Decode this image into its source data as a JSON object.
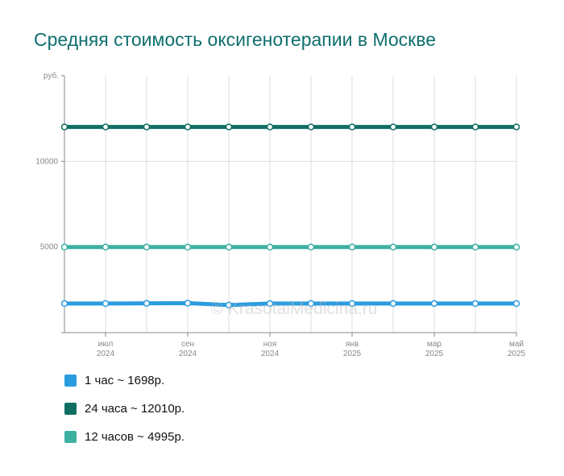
{
  "chart_data": {
    "type": "line",
    "title": "Средняя стоимость оксигенотерапии в Москве",
    "ylabel": "руб.",
    "ylim": [
      0,
      15000
    ],
    "yticks": [
      {
        "value": 10000,
        "label": "10000"
      },
      {
        "value": 5000,
        "label": "5000"
      }
    ],
    "x": [
      "2024-06",
      "2024-07",
      "2024-08",
      "2024-09",
      "2024-10",
      "2024-11",
      "2024-12",
      "2025-01",
      "2025-02",
      "2025-03",
      "2025-04",
      "2025-05"
    ],
    "xticks": [
      {
        "month": "июл",
        "year": "2024"
      },
      {
        "month": "сен",
        "year": "2024"
      },
      {
        "month": "ноя",
        "year": "2024"
      },
      {
        "month": "янв",
        "year": "2025"
      },
      {
        "month": "мар",
        "year": "2025"
      },
      {
        "month": "май",
        "year": "2025"
      }
    ],
    "series": [
      {
        "name": "1 час ~ 1698р.",
        "color": "#2b9ce0",
        "values": [
          1698,
          1698,
          1710,
          1720,
          1610,
          1698,
          1698,
          1698,
          1698,
          1698,
          1698,
          1698
        ]
      },
      {
        "name": "24 часа ~ 12010р.",
        "color": "#0f6e62",
        "values": [
          12010,
          12010,
          12010,
          12010,
          12010,
          12010,
          12010,
          12010,
          12010,
          12010,
          12010,
          12010
        ]
      },
      {
        "name": "12 часов ~ 4995р.",
        "color": "#3db1a1",
        "values": [
          4995,
          4995,
          4995,
          4995,
          4995,
          4995,
          4995,
          4995,
          4995,
          4995,
          4995,
          4995
        ]
      }
    ],
    "grid": true,
    "legend_position": "bottom-left",
    "watermark": "© KrasotaiMedicina.ru"
  }
}
